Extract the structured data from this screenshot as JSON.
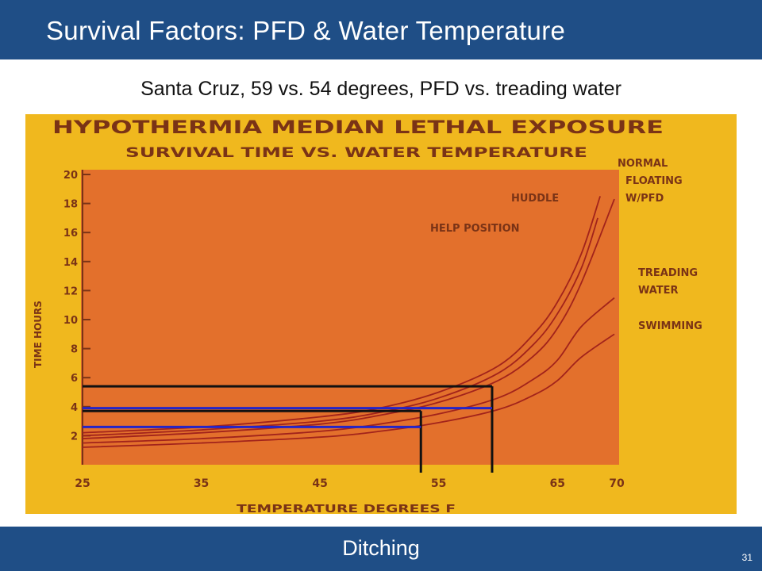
{
  "header": {
    "title": "Survival Factors: PFD & Water Temperature"
  },
  "subtitle": "Santa Cruz, 59 vs. 54 degrees, PFD vs. treading water",
  "footer": {
    "title": "Ditching",
    "page_number": "31"
  },
  "colors": {
    "header_bg": "#1f4e86",
    "slide_bg": "#f0b81e",
    "plot_bg": "#e3702c",
    "text_dark": "#7a3316",
    "curve": "#a2231b",
    "marker_black": "#111111",
    "marker_blue": "#2424c8"
  },
  "chart_data": {
    "type": "line",
    "title": "HYPOTHERMIA MEDIAN LETHAL EXPOSURE",
    "subtitle": "SURVIVAL TIME VS. WATER TEMPERATURE",
    "xlabel": "TEMPERATURE DEGREES F",
    "ylabel": "TIME HOURS",
    "xlim": [
      25,
      70
    ],
    "ylim": [
      0,
      20
    ],
    "x_ticks": [
      "25",
      "35",
      "45",
      "55",
      "65",
      "70"
    ],
    "y_ticks": [
      "2",
      "4",
      "6",
      "8",
      "10",
      "12",
      "14",
      "16",
      "18",
      "20"
    ],
    "grid": false,
    "series": [
      {
        "name": "HUDDLE",
        "points": [
          [
            25,
            2.2
          ],
          [
            35,
            2.6
          ],
          [
            45,
            3.3
          ],
          [
            50,
            3.9
          ],
          [
            55,
            5.0
          ],
          [
            60,
            6.8
          ],
          [
            63,
            9.0
          ],
          [
            65,
            11.2
          ],
          [
            67,
            14.5
          ],
          [
            68.6,
            18.5
          ]
        ]
      },
      {
        "name": "HELP POSITION",
        "points": [
          [
            25,
            2.0
          ],
          [
            35,
            2.4
          ],
          [
            45,
            3.0
          ],
          [
            50,
            3.6
          ],
          [
            55,
            4.6
          ],
          [
            60,
            6.3
          ],
          [
            63,
            8.3
          ],
          [
            65,
            10.4
          ],
          [
            67,
            13.5
          ],
          [
            68.4,
            17.0
          ]
        ]
      },
      {
        "name": "NORMAL FLOATING W/PFD",
        "points": [
          [
            25,
            1.8
          ],
          [
            35,
            2.2
          ],
          [
            45,
            2.8
          ],
          [
            50,
            3.4
          ],
          [
            55,
            4.3
          ],
          [
            60,
            5.8
          ],
          [
            63,
            7.5
          ],
          [
            65,
            9.4
          ],
          [
            67,
            12.5
          ],
          [
            69.8,
            18.3
          ]
        ]
      },
      {
        "name": "TREADING WATER",
        "points": [
          [
            25,
            1.5
          ],
          [
            35,
            1.8
          ],
          [
            45,
            2.3
          ],
          [
            50,
            2.8
          ],
          [
            55,
            3.5
          ],
          [
            60,
            4.6
          ],
          [
            63,
            5.9
          ],
          [
            65,
            7.2
          ],
          [
            67,
            9.5
          ],
          [
            69.8,
            11.5
          ]
        ]
      },
      {
        "name": "SWIMMING",
        "points": [
          [
            25,
            1.2
          ],
          [
            35,
            1.5
          ],
          [
            45,
            1.9
          ],
          [
            50,
            2.3
          ],
          [
            55,
            2.9
          ],
          [
            60,
            3.8
          ],
          [
            63,
            4.8
          ],
          [
            65,
            5.8
          ],
          [
            67,
            7.4
          ],
          [
            69.8,
            9.0
          ]
        ]
      }
    ],
    "annotations": [
      {
        "color": "black",
        "temperature": 59.5,
        "hours": 5.4
      },
      {
        "color": "blue",
        "temperature": 59.5,
        "hours": 3.9
      },
      {
        "color": "black",
        "temperature": 53.5,
        "hours": 3.7
      },
      {
        "color": "blue",
        "temperature": 53.5,
        "hours": 2.6
      }
    ]
  }
}
